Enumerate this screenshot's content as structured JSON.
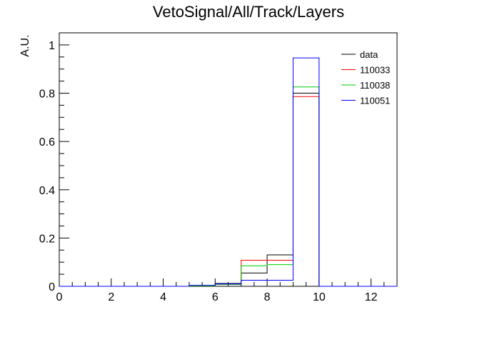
{
  "chart_data": {
    "type": "histogram",
    "title": "VetoSignal/All/Track/Layers",
    "xlabel": "",
    "ylabel": "A.U.",
    "xlim": [
      0,
      13
    ],
    "ylim": [
      0,
      1.05
    ],
    "x_ticks": [
      0,
      2,
      4,
      6,
      8,
      10,
      12
    ],
    "y_ticks": [
      0,
      0.2,
      0.4,
      0.6,
      0.8,
      1
    ],
    "y_tick_labels": [
      "0",
      "0.2",
      "0.4",
      "0.6",
      "0.8",
      "1"
    ],
    "legend_position": "top-right",
    "bin_edges": [
      0,
      1,
      2,
      3,
      4,
      5,
      6,
      7,
      8,
      9,
      10,
      11,
      12,
      13
    ],
    "series": [
      {
        "name": "data",
        "color": "#000000",
        "values": [
          0,
          0,
          0,
          0,
          0,
          0.003,
          0.012,
          0.055,
          0.13,
          0.8,
          0,
          0,
          0
        ]
      },
      {
        "name": "110033",
        "color": "#ff0000",
        "values": [
          0,
          0,
          0,
          0,
          0,
          0.002,
          0.008,
          0.108,
          0.108,
          0.786,
          0,
          0,
          0
        ]
      },
      {
        "name": "110038",
        "color": "#00cc00",
        "values": [
          0,
          0,
          0,
          0,
          0,
          0.002,
          0.008,
          0.085,
          0.09,
          0.826,
          0,
          0,
          0
        ]
      },
      {
        "name": "110051",
        "color": "#0000ff",
        "values": [
          0,
          0,
          0,
          0,
          0,
          0.004,
          0.01,
          0.025,
          0.025,
          0.946,
          0,
          0,
          0
        ]
      }
    ]
  }
}
